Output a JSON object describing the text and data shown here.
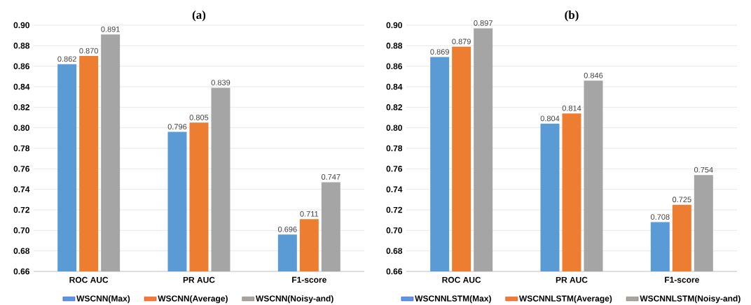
{
  "chart_data": [
    {
      "type": "bar",
      "title": "(a)",
      "categories": [
        "ROC AUC",
        "PR AUC",
        "F1-score"
      ],
      "series": [
        {
          "name": "WSCNN(Max)",
          "color": "#5b9bd5",
          "values": [
            0.862,
            0.796,
            0.696
          ],
          "value_labels": [
            "0.862",
            "0.796",
            "0.696"
          ]
        },
        {
          "name": "WSCNN(Average)",
          "color": "#ed7d31",
          "values": [
            0.87,
            0.805,
            0.711
          ],
          "value_labels": [
            "0.870",
            "0.805",
            "0.711"
          ]
        },
        {
          "name": "WSCNN(Noisy-and)",
          "color": "#a5a5a5",
          "values": [
            0.891,
            0.839,
            0.747
          ],
          "value_labels": [
            "0.891",
            "0.839",
            "0.747"
          ]
        }
      ],
      "ylim": [
        0.66,
        0.9
      ],
      "yticks": [
        {
          "value": 0.66,
          "label": "0.66"
        },
        {
          "value": 0.68,
          "label": "0.68"
        },
        {
          "value": 0.7,
          "label": "0.70"
        },
        {
          "value": 0.72,
          "label": "0.72"
        },
        {
          "value": 0.74,
          "label": "0.74"
        },
        {
          "value": 0.76,
          "label": "0.76"
        },
        {
          "value": 0.78,
          "label": "0.78"
        },
        {
          "value": 0.8,
          "label": "0.80"
        },
        {
          "value": 0.82,
          "label": "0.82"
        },
        {
          "value": 0.84,
          "label": "0.84"
        },
        {
          "value": 0.86,
          "label": "0.86"
        },
        {
          "value": 0.88,
          "label": "0.88"
        },
        {
          "value": 0.9,
          "label": "0.90"
        }
      ],
      "grid": "y",
      "legend": "bottom"
    },
    {
      "type": "bar",
      "title": "(b)",
      "categories": [
        "ROC AUC",
        "PR AUC",
        "F1-score"
      ],
      "series": [
        {
          "name": "WSCNNLSTM(Max)",
          "color": "#5b9bd5",
          "values": [
            0.869,
            0.804,
            0.708
          ],
          "value_labels": [
            "0.869",
            "0.804",
            "0.708"
          ]
        },
        {
          "name": "WSCNNLSTM(Average)",
          "color": "#ed7d31",
          "values": [
            0.879,
            0.814,
            0.725
          ],
          "value_labels": [
            "0.879",
            "0.814",
            "0.725"
          ]
        },
        {
          "name": "WSCNNLSTM(Noisy-and)",
          "color": "#a5a5a5",
          "values": [
            0.897,
            0.846,
            0.754
          ],
          "value_labels": [
            "0.897",
            "0.846",
            "0.754"
          ]
        }
      ],
      "ylim": [
        0.66,
        0.9
      ],
      "yticks": [
        {
          "value": 0.66,
          "label": "0.66"
        },
        {
          "value": 0.68,
          "label": "0.68"
        },
        {
          "value": 0.7,
          "label": "0.70"
        },
        {
          "value": 0.72,
          "label": "0.72"
        },
        {
          "value": 0.74,
          "label": "0.74"
        },
        {
          "value": 0.76,
          "label": "0.76"
        },
        {
          "value": 0.78,
          "label": "0.78"
        },
        {
          "value": 0.8,
          "label": "0.80"
        },
        {
          "value": 0.82,
          "label": "0.82"
        },
        {
          "value": 0.84,
          "label": "0.84"
        },
        {
          "value": 0.86,
          "label": "0.86"
        },
        {
          "value": 0.88,
          "label": "0.88"
        },
        {
          "value": 0.9,
          "label": "0.90"
        }
      ],
      "grid": "y",
      "legend": "bottom"
    }
  ]
}
